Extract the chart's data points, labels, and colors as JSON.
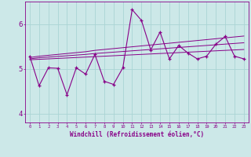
{
  "xlabel": "Windchill (Refroidissement éolien,°C)",
  "background_color": "#cce8e8",
  "grid_color": "#aad4d4",
  "line_color": "#880088",
  "hours": [
    0,
    1,
    2,
    3,
    4,
    5,
    6,
    7,
    8,
    9,
    10,
    11,
    12,
    13,
    14,
    15,
    16,
    17,
    18,
    19,
    20,
    21,
    22,
    23
  ],
  "actual": [
    5.28,
    4.62,
    5.02,
    5.01,
    4.42,
    5.02,
    4.88,
    5.32,
    4.72,
    4.65,
    5.02,
    6.32,
    6.08,
    5.42,
    5.82,
    5.22,
    5.52,
    5.35,
    5.22,
    5.28,
    5.55,
    5.72,
    5.28,
    5.22
  ],
  "trend_upper": [
    5.25,
    5.28,
    5.3,
    5.32,
    5.34,
    5.36,
    5.38,
    5.41,
    5.43,
    5.45,
    5.47,
    5.49,
    5.51,
    5.53,
    5.55,
    5.57,
    5.59,
    5.61,
    5.63,
    5.65,
    5.67,
    5.69,
    5.71,
    5.73
  ],
  "trend_lower": [
    5.2,
    5.21,
    5.22,
    5.23,
    5.24,
    5.25,
    5.26,
    5.27,
    5.28,
    5.29,
    5.3,
    5.31,
    5.32,
    5.33,
    5.34,
    5.35,
    5.36,
    5.37,
    5.38,
    5.39,
    5.4,
    5.41,
    5.42,
    5.43
  ],
  "trend_mid": [
    5.22,
    5.245,
    5.26,
    5.275,
    5.29,
    5.305,
    5.32,
    5.34,
    5.355,
    5.37,
    5.385,
    5.4,
    5.415,
    5.43,
    5.445,
    5.46,
    5.475,
    5.49,
    5.505,
    5.52,
    5.535,
    5.55,
    5.565,
    5.58
  ],
  "ylim": [
    3.8,
    6.5
  ],
  "yticks": [
    4,
    5,
    6
  ],
  "xlim": [
    -0.5,
    23.5
  ]
}
